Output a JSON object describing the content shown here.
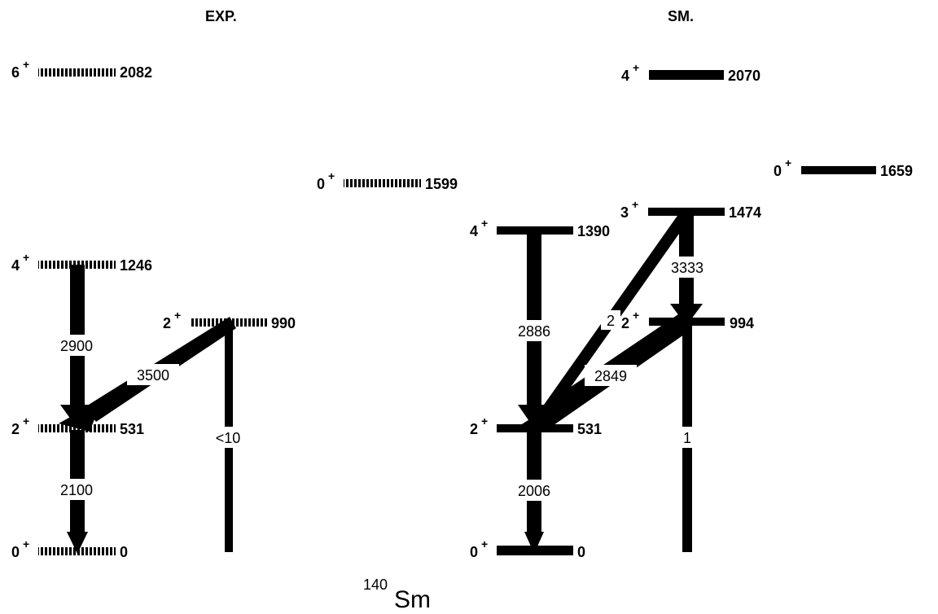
{
  "panels": {
    "exp_label": "EXP.",
    "sm_label": "SM."
  },
  "title": {
    "mass": "140",
    "symbol": "Sm"
  },
  "exp": {
    "levels": [
      {
        "spin": "6",
        "parity": "+",
        "energy": "2082"
      },
      {
        "spin": "0",
        "parity": "+",
        "energy": "1599"
      },
      {
        "spin": "4",
        "parity": "+",
        "energy": "1246"
      },
      {
        "spin": "2",
        "parity": "+",
        "energy": "990"
      },
      {
        "spin": "2",
        "parity": "+",
        "energy": "531"
      },
      {
        "spin": "0",
        "parity": "+",
        "energy": "0"
      }
    ],
    "transitions": [
      {
        "label": "2900",
        "from": "1246",
        "to": "531"
      },
      {
        "label": "3500",
        "from": "990",
        "to": "531"
      },
      {
        "label": "2100",
        "from": "531",
        "to": "0"
      },
      {
        "label": "<10",
        "from": "990",
        "to": "0"
      }
    ]
  },
  "sm": {
    "levels": [
      {
        "spin": "4",
        "parity": "+",
        "energy": "2070"
      },
      {
        "spin": "0",
        "parity": "+",
        "energy": "1659"
      },
      {
        "spin": "3",
        "parity": "+",
        "energy": "1474"
      },
      {
        "spin": "4",
        "parity": "+",
        "energy": "1390"
      },
      {
        "spin": "2",
        "parity": "+",
        "energy": "994"
      },
      {
        "spin": "2",
        "parity": "+",
        "energy": "531"
      },
      {
        "spin": "0",
        "parity": "+",
        "energy": "0"
      }
    ],
    "transitions": [
      {
        "label": "2886",
        "from": "1390",
        "to": "531"
      },
      {
        "label": "3333",
        "from": "1474",
        "to": "994"
      },
      {
        "label": "2",
        "from": "1474",
        "to": "531"
      },
      {
        "label": "2849",
        "from": "994",
        "to": "531"
      },
      {
        "label": "2006",
        "from": "531",
        "to": "0"
      },
      {
        "label": "1",
        "from": "994",
        "to": "0"
      }
    ]
  }
}
